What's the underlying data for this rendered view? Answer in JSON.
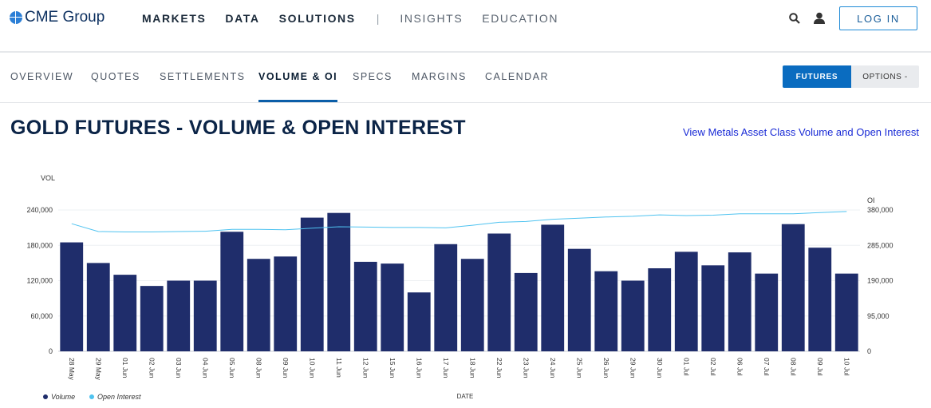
{
  "header": {
    "logo_text": "CME Group",
    "nav_main": [
      "MARKETS",
      "DATA",
      "SOLUTIONS"
    ],
    "nav_separator": "|",
    "nav_secondary": [
      "INSIGHTS",
      "EDUCATION"
    ],
    "login_label": "LOG IN"
  },
  "subnav": {
    "tabs": [
      {
        "label": "OVERVIEW"
      },
      {
        "label": "QUOTES"
      },
      {
        "label": "SETTLEMENTS"
      },
      {
        "label": "VOLUME & OI",
        "active": true
      },
      {
        "label": "SPECS"
      },
      {
        "label": "MARGINS"
      },
      {
        "label": "CALENDAR"
      }
    ],
    "futures_label": "FUTURES",
    "options_label": "OPTIONS -"
  },
  "page": {
    "title": "GOLD FUTURES - VOLUME & OPEN INTEREST",
    "link": "View Metals Asset Class Volume and Open Interest"
  },
  "colors": {
    "volume_bar": "#1f2d6b",
    "oi_line": "#4fc3f0",
    "accent": "#0a6cc0"
  },
  "chart_data": {
    "type": "bar",
    "ylabel_left": "VOL",
    "ylabel_right": "OI",
    "xlabel": "DATE",
    "y_left_ticks": [
      "0",
      "60,000",
      "120,000",
      "180,000",
      "240,000"
    ],
    "y_right_ticks": [
      "0",
      "95,000",
      "190,000",
      "285,000",
      "380,000"
    ],
    "ylim_left": [
      0,
      240000
    ],
    "ylim_right": [
      0,
      380000
    ],
    "categories": [
      "28 May",
      "29 May",
      "01 Jun",
      "02 Jun",
      "03 Jun",
      "04 Jun",
      "05 Jun",
      "08 Jun",
      "09 Jun",
      "10 Jun",
      "11 Jun",
      "12 Jun",
      "15 Jun",
      "16 Jun",
      "17 Jun",
      "18 Jun",
      "22 Jun",
      "23 Jun",
      "24 Jun",
      "25 Jun",
      "26 Jun",
      "29 Jun",
      "30 Jun",
      "01 Jul",
      "02 Jul",
      "06 Jul",
      "07 Jul",
      "08 Jul",
      "09 Jul",
      "10 Jul"
    ],
    "series": [
      {
        "name": "Volume",
        "axis": "left",
        "kind": "bar",
        "values": [
          185000,
          150000,
          130000,
          111000,
          120000,
          120000,
          203000,
          157000,
          161000,
          227000,
          235000,
          152000,
          149000,
          100000,
          182000,
          157000,
          200000,
          133000,
          215000,
          174000,
          136000,
          120000,
          141000,
          169000,
          146000,
          168000,
          132000,
          216000,
          176000,
          132000
        ]
      },
      {
        "name": "Open Interest",
        "axis": "right",
        "kind": "line",
        "values": [
          343000,
          322000,
          321000,
          321000,
          322000,
          323000,
          328000,
          328000,
          327000,
          331000,
          335000,
          334000,
          333000,
          333000,
          332000,
          339000,
          347000,
          349000,
          355000,
          358000,
          361000,
          363000,
          367000,
          365000,
          366000,
          370000,
          370000,
          370000,
          373000,
          376000
        ]
      }
    ],
    "legend_position": "bottom-left",
    "grid": true
  }
}
